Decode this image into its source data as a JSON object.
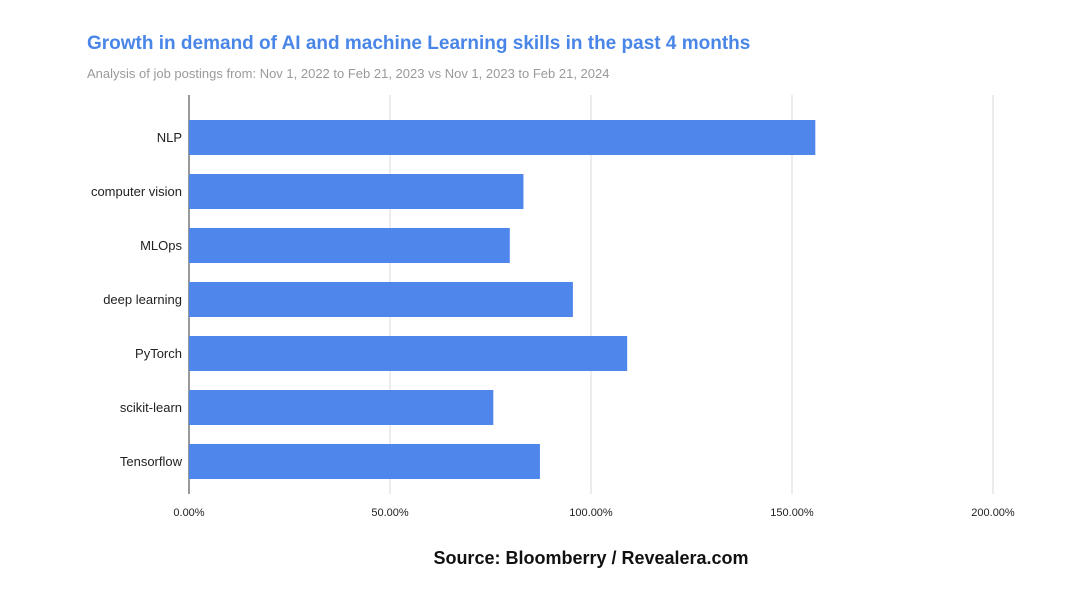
{
  "chart_data": {
    "type": "bar",
    "orientation": "horizontal",
    "title": "Growth in demand of AI and machine Learning skills in the past 4 months",
    "subtitle": "Analysis of job postings from: Nov 1, 2022 to Feb 21, 2023 vs Nov 1, 2023 to Feb 21, 2024",
    "categories": [
      "NLP",
      "computer vision",
      "MLOps",
      "deep learning",
      "PyTorch",
      "scikit-learn",
      "Tensorflow"
    ],
    "values": [
      155.8,
      83.2,
      79.8,
      95.5,
      109.0,
      75.7,
      87.3
    ],
    "xlim": [
      0,
      200
    ],
    "x_ticks": [
      0,
      50,
      100,
      150,
      200
    ],
    "x_tick_labels": [
      "0.00%",
      "50.00%",
      "100.00%",
      "150.00%",
      "200.00%"
    ],
    "bar_color": "#4f86ec",
    "grid": true,
    "legend": "none"
  },
  "source": "Source: Bloomberry / Revealera.com"
}
